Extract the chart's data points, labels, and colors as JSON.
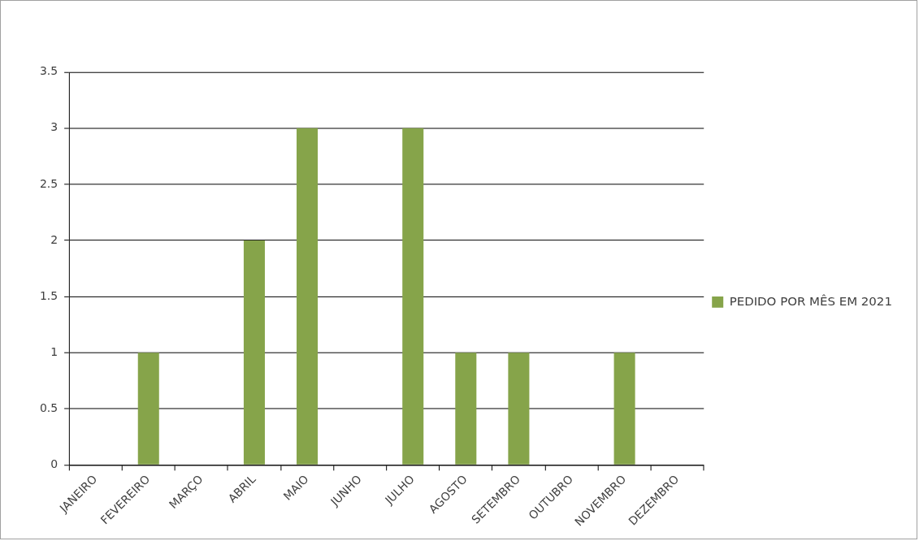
{
  "chart_data": {
    "type": "bar",
    "categories": [
      "JANEIRO",
      "FEVEREIRO",
      "MARÇO",
      "ABRIL",
      "MAIO",
      "JUNHO",
      "JULHO",
      "AGOSTO",
      "SETEMBRO",
      "OUTUBRO",
      "NOVEMBRO",
      "DEZEMBRO"
    ],
    "series": [
      {
        "name": "PEDIDO POR MÊS EM 2021",
        "color": "#86a44a",
        "values": [
          0,
          1,
          0,
          2,
          3,
          0,
          3,
          1,
          1,
          0,
          1,
          0
        ]
      }
    ],
    "ylim": [
      0,
      3.5
    ],
    "yticks": [
      0,
      0.5,
      1,
      1.5,
      2,
      2.5,
      3,
      3.5
    ],
    "grid": "y",
    "legend": "right"
  }
}
